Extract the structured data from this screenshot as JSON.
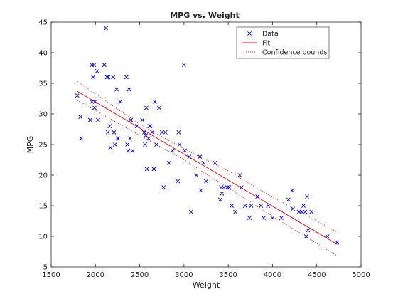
{
  "chart_data": {
    "type": "scatter",
    "title": "MPG vs. Weight",
    "xlabel": "Weight",
    "ylabel": "MPG",
    "xlim": [
      1500,
      5000
    ],
    "ylim": [
      5,
      45
    ],
    "xticks": [
      1500,
      2000,
      2500,
      3000,
      3500,
      4000,
      4500,
      5000
    ],
    "yticks": [
      5,
      10,
      15,
      20,
      25,
      30,
      35,
      40,
      45
    ],
    "grid": false,
    "legend_position": "top-right",
    "legend": [
      {
        "label": "Data",
        "style": "marker-x",
        "color": "#0000ff"
      },
      {
        "label": "Fit",
        "style": "solid",
        "color": "#ff0000"
      },
      {
        "label": "Confidence bounds",
        "style": "dotted",
        "color": "#ff0000"
      }
    ],
    "series": [
      {
        "name": "Data",
        "kind": "scatter",
        "color": "#0000ff",
        "points": [
          [
            1795,
            33
          ],
          [
            1830,
            29.5
          ],
          [
            1840,
            26
          ],
          [
            1940,
            29
          ],
          [
            1960,
            32
          ],
          [
            1960,
            38
          ],
          [
            1975,
            36
          ],
          [
            1985,
            38
          ],
          [
            1990,
            31
          ],
          [
            1995,
            32
          ],
          [
            2020,
            37
          ],
          [
            2030,
            29
          ],
          [
            2100,
            38
          ],
          [
            2120,
            44
          ],
          [
            2130,
            36
          ],
          [
            2140,
            27
          ],
          [
            2145,
            36
          ],
          [
            2160,
            28
          ],
          [
            2170,
            24.5
          ],
          [
            2200,
            36
          ],
          [
            2210,
            27
          ],
          [
            2220,
            25
          ],
          [
            2240,
            34
          ],
          [
            2250,
            26
          ],
          [
            2255,
            26
          ],
          [
            2280,
            32
          ],
          [
            2350,
            36
          ],
          [
            2360,
            25
          ],
          [
            2370,
            24
          ],
          [
            2380,
            34
          ],
          [
            2390,
            26
          ],
          [
            2400,
            29
          ],
          [
            2420,
            24
          ],
          [
            2470,
            28
          ],
          [
            2530,
            29
          ],
          [
            2550,
            27
          ],
          [
            2560,
            25
          ],
          [
            2570,
            26.5
          ],
          [
            2575,
            31
          ],
          [
            2580,
            21
          ],
          [
            2600,
            26
          ],
          [
            2610,
            28
          ],
          [
            2620,
            28
          ],
          [
            2640,
            27
          ],
          [
            2660,
            21
          ],
          [
            2670,
            32
          ],
          [
            2690,
            25
          ],
          [
            2720,
            31
          ],
          [
            2750,
            27
          ],
          [
            2770,
            18
          ],
          [
            2790,
            27
          ],
          [
            2830,
            22
          ],
          [
            2870,
            24
          ],
          [
            2930,
            19
          ],
          [
            2940,
            27
          ],
          [
            2950,
            25
          ],
          [
            3000,
            38
          ],
          [
            3010,
            24
          ],
          [
            3060,
            23
          ],
          [
            3080,
            14
          ],
          [
            3140,
            20
          ],
          [
            3180,
            23
          ],
          [
            3190,
            17.5
          ],
          [
            3220,
            22
          ],
          [
            3250,
            19
          ],
          [
            3350,
            22
          ],
          [
            3410,
            16
          ],
          [
            3420,
            18
          ],
          [
            3430,
            17
          ],
          [
            3450,
            18
          ],
          [
            3490,
            18
          ],
          [
            3510,
            18
          ],
          [
            3540,
            15
          ],
          [
            3580,
            14
          ],
          [
            3630,
            20
          ],
          [
            3650,
            18
          ],
          [
            3690,
            15
          ],
          [
            3740,
            13
          ],
          [
            3760,
            15
          ],
          [
            3830,
            16.5
          ],
          [
            3870,
            15
          ],
          [
            3900,
            13
          ],
          [
            3950,
            15
          ],
          [
            4000,
            13
          ],
          [
            4100,
            13
          ],
          [
            4180,
            16
          ],
          [
            4220,
            17.5
          ],
          [
            4230,
            14.5
          ],
          [
            4300,
            14
          ],
          [
            4330,
            14
          ],
          [
            4350,
            15
          ],
          [
            4370,
            14
          ],
          [
            4380,
            10
          ],
          [
            4400,
            11
          ],
          [
            4390,
            16.5
          ],
          [
            4440,
            14
          ],
          [
            4620,
            10
          ],
          [
            4730,
            9
          ]
        ]
      },
      {
        "name": "Fit",
        "kind": "line",
        "color": "#ff0000",
        "points": [
          [
            1795,
            33.7
          ],
          [
            4732,
            8.7
          ]
        ]
      },
      {
        "name": "Confidence bounds",
        "kind": "line",
        "style": "dotted",
        "color": "#ff0000",
        "bounds": [
          [
            [
              1795,
              35.3
            ],
            [
              2500,
              28.3
            ],
            [
              3000,
              24.3
            ],
            [
              3500,
              20.7
            ],
            [
              4000,
              16.4
            ],
            [
              4732,
              10.7
            ]
          ],
          [
            [
              1795,
              32.2
            ],
            [
              2500,
              26.5
            ],
            [
              3000,
              22.5
            ],
            [
              3500,
              17.9
            ],
            [
              4000,
              13.3
            ],
            [
              4732,
              6.8
            ]
          ]
        ]
      }
    ]
  }
}
